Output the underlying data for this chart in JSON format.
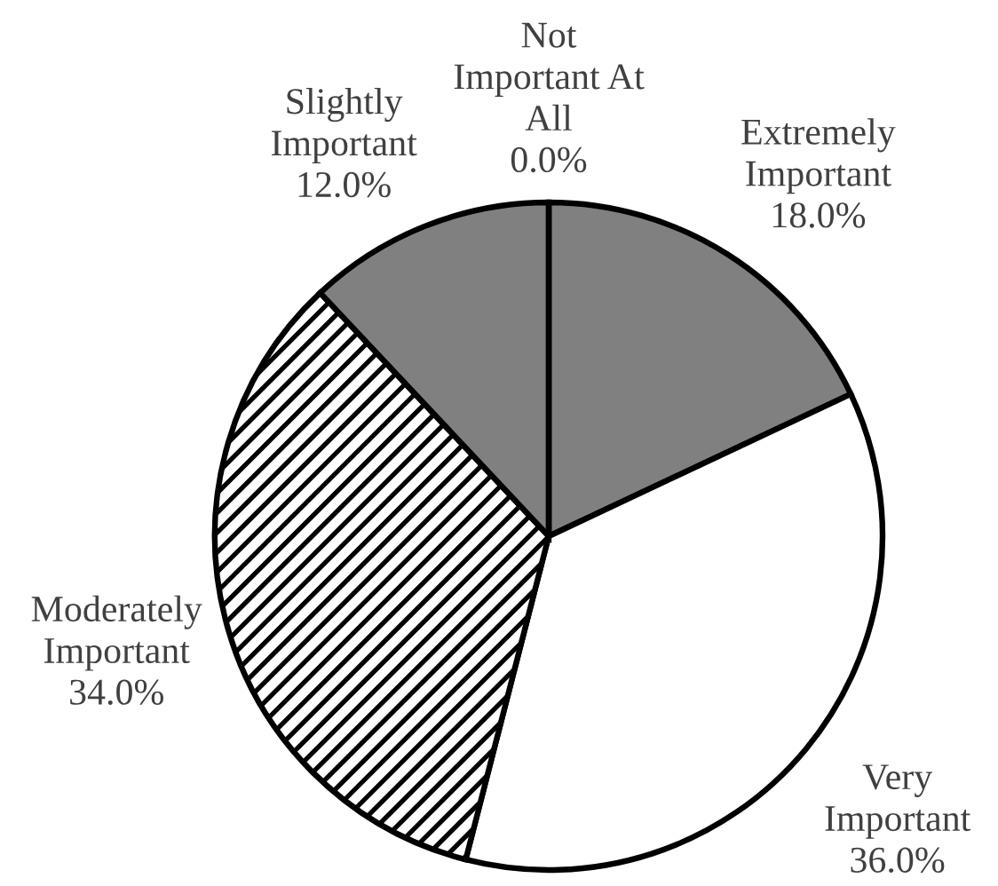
{
  "chart_data": {
    "type": "pie",
    "categories": [
      "Extremely Important",
      "Very Important",
      "Moderately Important",
      "Slightly Important",
      "Not Important At All"
    ],
    "values": [
      18.0,
      36.0,
      34.0,
      12.0,
      0.0
    ],
    "value_labels": [
      "18.0%",
      "36.0%",
      "34.0%",
      "12.0%",
      "0.0%"
    ],
    "colors": [
      "#808080",
      "#ffffff",
      "#000000",
      "#808080",
      "#808080"
    ]
  }
}
